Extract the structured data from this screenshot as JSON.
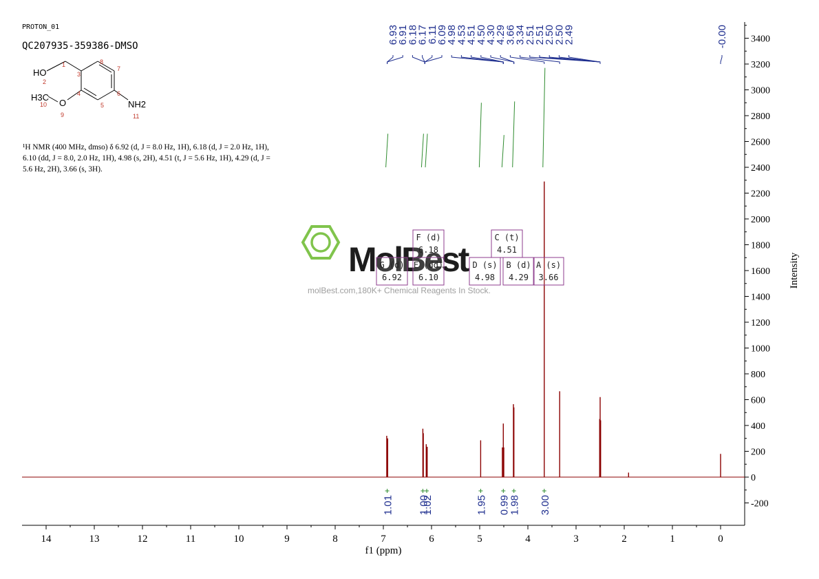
{
  "header": {
    "experiment": "PROTON_01",
    "sample_id": "QC207935-359386-DMSO"
  },
  "structure": {
    "atoms": {
      "oh": "HO",
      "ch3": "H3C",
      "o": "O",
      "nh2": "NH2"
    },
    "numbers": [
      "1",
      "2",
      "3",
      "4",
      "5",
      "6",
      "7",
      "8",
      "9",
      "10",
      "11"
    ]
  },
  "summary_text": "¹H NMR (400 MHz, dmso) δ 6.92 (d, J = 8.0 Hz, 1H), 6.18 (d, J = 2.0 Hz, 1H), 6.10 (dd, J = 8.0, 2.0 Hz, 1H), 4.98 (s, 2H), 4.51 (t, J = 5.6 Hz, 1H), 4.29 (d, J = 5.6 Hz, 2H), 3.66 (s, 3H).",
  "watermark": {
    "brand": "MolBest",
    "tagline": "molBest.com,180K+ Chemical Reagents In Stock."
  },
  "colors": {
    "spectrum": "#8b0000",
    "integral": "#2e8b2e",
    "labels": "#1f2f8f",
    "multiplet_box": "#8e3b8e",
    "watermark_green": "#7ac143",
    "axis": "#000000"
  },
  "chart_data": {
    "type": "line",
    "title": "",
    "xlabel": "f1 (ppm)",
    "ylabel": "Intensity",
    "x_reversed": true,
    "xlim": [
      14.6,
      -0.5
    ],
    "ylim": [
      -350,
      3500
    ],
    "x_ticks": [
      14,
      13,
      12,
      11,
      10,
      9,
      8,
      7,
      6,
      5,
      4,
      3,
      2,
      1,
      0
    ],
    "y_ticks": [
      -200,
      0,
      200,
      400,
      600,
      800,
      1000,
      1200,
      1400,
      1600,
      1800,
      2000,
      2200,
      2400,
      2600,
      2800,
      3000,
      3200,
      3400
    ],
    "peaks": [
      {
        "ppm": 6.93,
        "height": 320
      },
      {
        "ppm": 6.91,
        "height": 300
      },
      {
        "ppm": 6.18,
        "height": 375
      },
      {
        "ppm": 6.17,
        "height": 340
      },
      {
        "ppm": 6.11,
        "height": 255
      },
      {
        "ppm": 6.09,
        "height": 235
      },
      {
        "ppm": 4.98,
        "height": 285
      },
      {
        "ppm": 4.53,
        "height": 230
      },
      {
        "ppm": 4.51,
        "height": 415
      },
      {
        "ppm": 4.5,
        "height": 230
      },
      {
        "ppm": 4.3,
        "height": 565
      },
      {
        "ppm": 4.29,
        "height": 540
      },
      {
        "ppm": 3.66,
        "height": 2290
      },
      {
        "ppm": 3.34,
        "height": 665
      },
      {
        "ppm": 2.51,
        "height": 450
      },
      {
        "ppm": 2.5,
        "height": 620
      },
      {
        "ppm": 2.49,
        "height": 440
      },
      {
        "ppm": 1.91,
        "height": 35
      },
      {
        "ppm": 0.0,
        "height": 180
      }
    ],
    "peak_labels": [
      "6.93",
      "6.91",
      "6.18",
      "6.17",
      "6.11",
      "6.09",
      "4.98",
      "4.53",
      "4.51",
      "4.50",
      "4.30",
      "4.29",
      "3.66",
      "3.34",
      "2.51",
      "2.51",
      "2.50",
      "2.50",
      "2.49",
      "-0.00"
    ],
    "label_groups": [
      {
        "ppm": 6.92,
        "labels": [
          "6.93",
          "6.91"
        ]
      },
      {
        "ppm": 6.14,
        "labels": [
          "6.18",
          "6.17",
          "6.11",
          "6.09"
        ]
      },
      {
        "ppm": 4.51,
        "labels": [
          "4.98",
          "4.53",
          "4.51",
          "4.50"
        ]
      },
      {
        "ppm": 4.29,
        "labels": [
          "4.30",
          "4.29"
        ]
      },
      {
        "ppm": 3.66,
        "labels": [
          "3.66"
        ]
      },
      {
        "ppm": 3.34,
        "labels": [
          "3.34"
        ]
      },
      {
        "ppm": 2.5,
        "labels": [
          "2.51",
          "2.51",
          "2.50",
          "2.50",
          "2.49"
        ]
      },
      {
        "ppm": 0.0,
        "labels": [
          "-0.00"
        ]
      }
    ],
    "integrals": [
      {
        "ppm": 6.92,
        "value": "1.01",
        "curve_bottom": 2400,
        "curve_top": 2660
      },
      {
        "ppm": 6.18,
        "value": "1.00",
        "curve_bottom": 2400,
        "curve_top": 2660
      },
      {
        "ppm": 6.1,
        "value": "1.02",
        "curve_bottom": 2400,
        "curve_top": 2660
      },
      {
        "ppm": 4.98,
        "value": "1.95",
        "curve_bottom": 2400,
        "curve_top": 2900
      },
      {
        "ppm": 4.51,
        "value": "0.99",
        "curve_bottom": 2400,
        "curve_top": 2650
      },
      {
        "ppm": 4.29,
        "value": "1.98",
        "curve_bottom": 2400,
        "curve_top": 2910
      },
      {
        "ppm": 3.66,
        "value": "3.00",
        "curve_bottom": 2400,
        "curve_top": 3170
      }
    ],
    "multiplets": [
      {
        "letter": "A",
        "type": "s",
        "ppm": "3.66"
      },
      {
        "letter": "B",
        "type": "d",
        "ppm": "4.29"
      },
      {
        "letter": "C",
        "type": "t",
        "ppm": "4.51"
      },
      {
        "letter": "D",
        "type": "s",
        "ppm": "4.98"
      },
      {
        "letter": "E",
        "type": "dd",
        "ppm": "6.10"
      },
      {
        "letter": "F",
        "type": "d",
        "ppm": "6.18"
      },
      {
        "letter": "G",
        "type": "d",
        "ppm": "6.92"
      }
    ]
  }
}
